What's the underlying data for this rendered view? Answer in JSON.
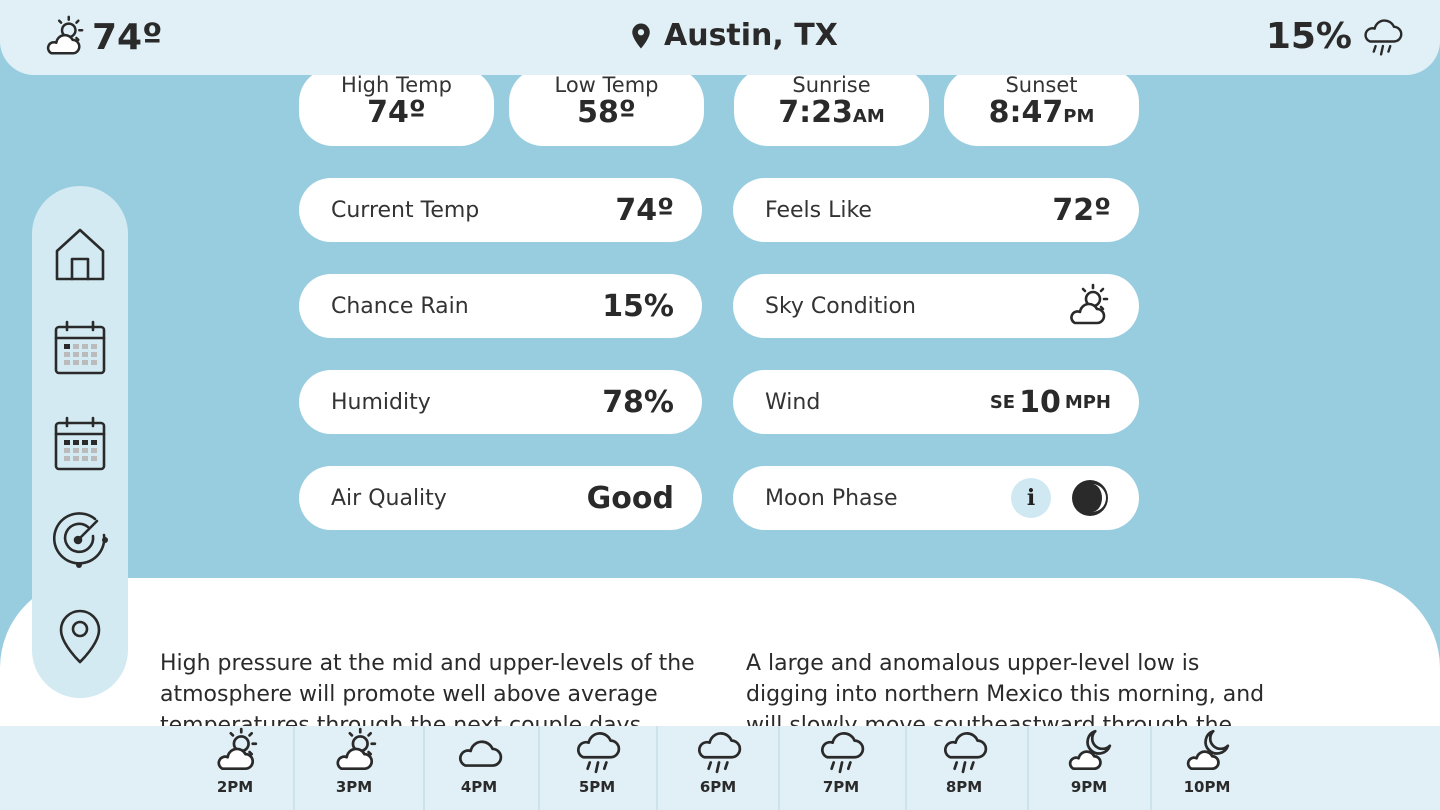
{
  "header": {
    "current_temp": "74º",
    "condition_icon": "partly-cloudy-icon",
    "location": "Austin, TX",
    "rain_chance": "15%",
    "rain_icon": "rain-cloud-icon"
  },
  "top_stats": [
    {
      "label": "High Temp",
      "value": "74º",
      "suffix": ""
    },
    {
      "label": "Low Temp",
      "value": "58º",
      "suffix": ""
    },
    {
      "label": "Sunrise",
      "value": "7:23",
      "suffix": "AM"
    },
    {
      "label": "Sunset",
      "value": "8:47",
      "suffix": "PM"
    }
  ],
  "details": {
    "current_temp": {
      "label": "Current Temp",
      "value": "74º"
    },
    "feels_like": {
      "label": "Feels Like",
      "value": "72º"
    },
    "chance_rain": {
      "label": "Chance Rain",
      "value": "15%"
    },
    "sky_condition": {
      "label": "Sky Condition",
      "icon": "partly-cloudy-icon"
    },
    "humidity": {
      "label": "Humidity",
      "value": "78%"
    },
    "wind": {
      "label": "Wind",
      "direction": "SE",
      "speed": "10",
      "unit": "MPH"
    },
    "air_quality": {
      "label": "Air Quality",
      "value": "Good"
    },
    "moon_phase": {
      "label": "Moon Phase",
      "info_label": "i",
      "icon": "moon-phase-icon"
    }
  },
  "sidebar": {
    "items": [
      {
        "name": "home-icon"
      },
      {
        "name": "calendar-day-icon"
      },
      {
        "name": "calendar-week-icon"
      },
      {
        "name": "radar-icon"
      },
      {
        "name": "location-pin-icon"
      }
    ]
  },
  "discussion": {
    "left": "High pressure at the mid and upper-levels of the atmosphere will promote well above average temperatures through the next couple days.",
    "right": "A large and anomalous upper-level low is digging into northern Mexico this morning, and will slowly move southeastward through the"
  },
  "hourly": [
    {
      "time": "2",
      "ampm": "PM",
      "icon": "partly-cloudy-icon"
    },
    {
      "time": "3",
      "ampm": "PM",
      "icon": "partly-cloudy-icon"
    },
    {
      "time": "4",
      "ampm": "PM",
      "icon": "cloud-icon"
    },
    {
      "time": "5",
      "ampm": "PM",
      "icon": "rain-cloud-icon"
    },
    {
      "time": "6",
      "ampm": "PM",
      "icon": "rain-cloud-icon"
    },
    {
      "time": "7",
      "ampm": "PM",
      "icon": "rain-cloud-icon"
    },
    {
      "time": "8",
      "ampm": "PM",
      "icon": "rain-cloud-icon"
    },
    {
      "time": "9",
      "ampm": "PM",
      "icon": "moon-cloud-icon"
    },
    {
      "time": "10",
      "ampm": "PM",
      "icon": "moon-cloud-icon"
    }
  ]
}
